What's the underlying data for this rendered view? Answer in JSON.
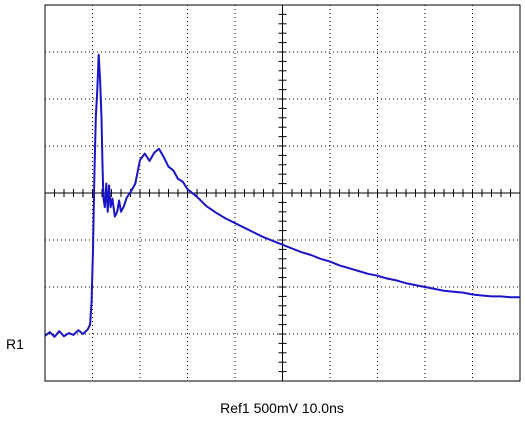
{
  "chart_data": {
    "type": "line",
    "title": "",
    "xlabel": "",
    "ylabel": "",
    "ref_label": "R1",
    "caption": "Ref1 500mV  10.0ns",
    "grid": true,
    "grid_divisions": {
      "x": 10,
      "y": 8
    },
    "trace_color": "#1a14c8",
    "xlim": [
      0,
      100
    ],
    "ylim": [
      -2000,
      2000
    ],
    "x_unit": "ns",
    "y_unit": "mV",
    "ref_level_mV": -1500,
    "series": [
      {
        "points": [
          [
            0.0,
            -1520
          ],
          [
            1.0,
            -1480
          ],
          [
            2.0,
            -1530
          ],
          [
            3.0,
            -1470
          ],
          [
            4.0,
            -1525
          ],
          [
            5.0,
            -1490
          ],
          [
            6.0,
            -1510
          ],
          [
            7.0,
            -1460
          ],
          [
            8.0,
            -1500
          ],
          [
            9.0,
            -1450
          ],
          [
            9.5,
            -1400
          ],
          [
            9.8,
            -1150
          ],
          [
            10.1,
            -600
          ],
          [
            10.4,
            200
          ],
          [
            10.7,
            800
          ],
          [
            11.0,
            1100
          ],
          [
            11.3,
            1470
          ],
          [
            11.6,
            1200
          ],
          [
            11.9,
            800
          ],
          [
            12.1,
            300
          ],
          [
            12.3,
            -50
          ],
          [
            12.6,
            -150
          ],
          [
            12.9,
            100
          ],
          [
            13.2,
            -200
          ],
          [
            13.5,
            80
          ],
          [
            13.8,
            -150
          ],
          [
            14.2,
            -60
          ],
          [
            14.7,
            -250
          ],
          [
            15.2,
            -200
          ],
          [
            15.6,
            -80
          ],
          [
            16.0,
            -200
          ],
          [
            16.6,
            -140
          ],
          [
            17.2,
            -50
          ],
          [
            18.0,
            10
          ],
          [
            19.0,
            100
          ],
          [
            20.0,
            350
          ],
          [
            21.0,
            420
          ],
          [
            22.0,
            340
          ],
          [
            23.0,
            430
          ],
          [
            24.0,
            470
          ],
          [
            25.0,
            380
          ],
          [
            26.0,
            280
          ],
          [
            27.0,
            240
          ],
          [
            28.0,
            150
          ],
          [
            29.0,
            120
          ],
          [
            30.0,
            40
          ],
          [
            32.0,
            -40
          ],
          [
            34.0,
            -140
          ],
          [
            36.0,
            -210
          ],
          [
            38.0,
            -270
          ],
          [
            40.0,
            -320
          ],
          [
            42.0,
            -370
          ],
          [
            44.0,
            -420
          ],
          [
            46.0,
            -470
          ],
          [
            48.0,
            -510
          ],
          [
            50.0,
            -550
          ],
          [
            52.0,
            -590
          ],
          [
            54.0,
            -630
          ],
          [
            56.0,
            -660
          ],
          [
            58.0,
            -700
          ],
          [
            60.0,
            -730
          ],
          [
            62.0,
            -770
          ],
          [
            64.0,
            -800
          ],
          [
            66.0,
            -830
          ],
          [
            68.0,
            -860
          ],
          [
            70.0,
            -880
          ],
          [
            72.0,
            -910
          ],
          [
            74.0,
            -930
          ],
          [
            76.0,
            -960
          ],
          [
            78.0,
            -980
          ],
          [
            80.0,
            -1000
          ],
          [
            82.0,
            -1020
          ],
          [
            84.0,
            -1040
          ],
          [
            86.0,
            -1050
          ],
          [
            88.0,
            -1060
          ],
          [
            90.0,
            -1080
          ],
          [
            92.0,
            -1090
          ],
          [
            94.0,
            -1100
          ],
          [
            96.0,
            -1100
          ],
          [
            98.0,
            -1110
          ],
          [
            100.0,
            -1110
          ]
        ]
      }
    ]
  }
}
